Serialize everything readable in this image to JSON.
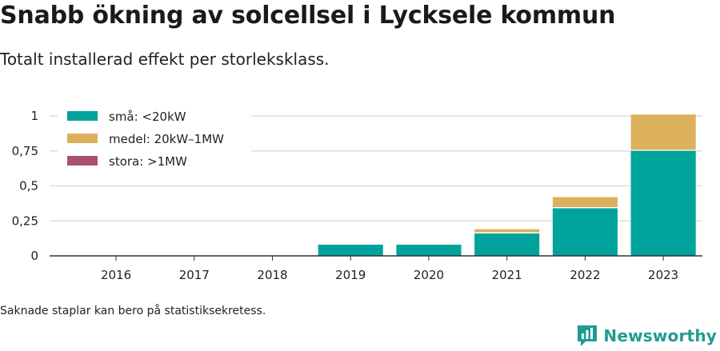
{
  "header": {
    "title": "Snabb ökning av solcellsel i Lycksele kommun",
    "subtitle": "Totalt installerad effekt per storleksklass."
  },
  "footer": {
    "note": "Saknade staplar kan bero på statistiksekretess.",
    "brand": "Newsworthy"
  },
  "colors": {
    "small": "#00a39b",
    "medium": "#ddb05d",
    "large": "#a94f71",
    "brand": "#1f9c91"
  },
  "chart_data": {
    "type": "bar",
    "stacked": true,
    "categories": [
      "2016",
      "2017",
      "2018",
      "2019",
      "2020",
      "2021",
      "2022",
      "2023"
    ],
    "series": [
      {
        "name": "små: <20kW",
        "values": [
          0,
          0,
          0,
          0.08,
          0.08,
          0.16,
          0.34,
          0.75
        ]
      },
      {
        "name": "medel: 20kW–1MW",
        "values": [
          0,
          0,
          0,
          0,
          0,
          0.03,
          0.08,
          0.26
        ]
      },
      {
        "name": "stora: >1MW",
        "values": [
          0,
          0,
          0,
          0,
          0,
          0,
          0,
          0
        ]
      }
    ],
    "yticks": [
      "0",
      "0,25",
      "0,5",
      "0,75",
      "1"
    ],
    "ylim": [
      0,
      1.0
    ],
    "grid": true,
    "legend": "top-left"
  }
}
